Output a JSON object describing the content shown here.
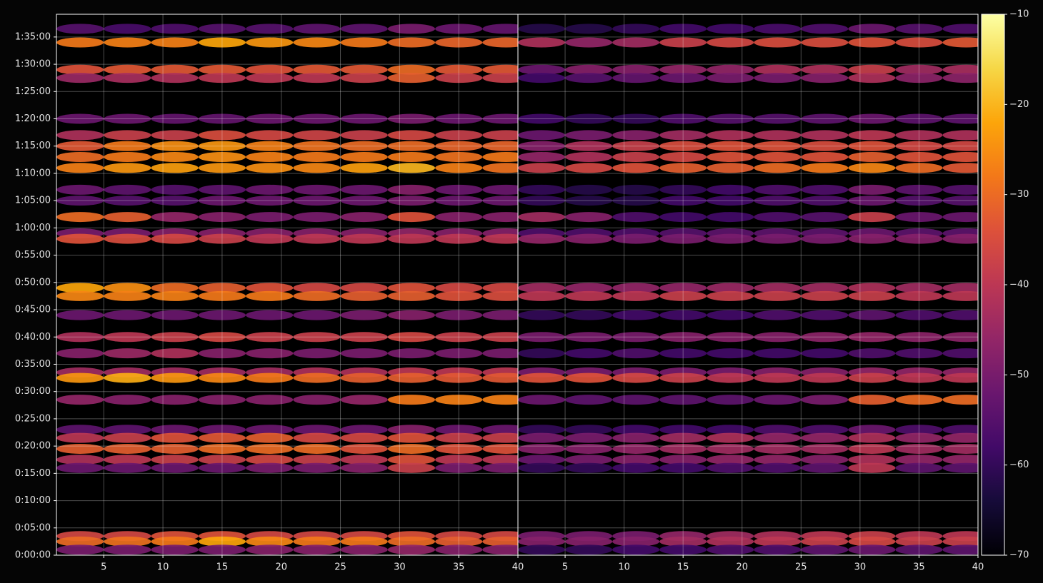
{
  "chart_data": [
    {
      "type": "heatmap",
      "colormap": "inferno",
      "grid": true,
      "xlim": [
        1,
        40
      ],
      "xticks": [
        5,
        10,
        15,
        20,
        25,
        30,
        35,
        40
      ],
      "ylim": [
        0,
        5950
      ],
      "yticks": [
        {
          "value": 0,
          "label": "0:00:00"
        },
        {
          "value": 300,
          "label": "0:05:00"
        },
        {
          "value": 600,
          "label": "0:10:00"
        },
        {
          "value": 900,
          "label": "0:15:00"
        },
        {
          "value": 1200,
          "label": "0:20:00"
        },
        {
          "value": 1500,
          "label": "0:25:00"
        },
        {
          "value": 1800,
          "label": "0:30:00"
        },
        {
          "value": 2100,
          "label": "0:35:00"
        },
        {
          "value": 2400,
          "label": "0:40:00"
        },
        {
          "value": 2700,
          "label": "0:45:00"
        },
        {
          "value": 3000,
          "label": "0:50:00"
        },
        {
          "value": 3300,
          "label": "0:55:00"
        },
        {
          "value": 3600,
          "label": "1:00:00"
        },
        {
          "value": 3900,
          "label": "1:05:00"
        },
        {
          "value": 4200,
          "label": "1:10:00"
        },
        {
          "value": 4500,
          "label": "1:15:00"
        },
        {
          "value": 4800,
          "label": "1:20:00"
        },
        {
          "value": 5100,
          "label": "1:25:00"
        },
        {
          "value": 5400,
          "label": "1:30:00"
        },
        {
          "value": 5700,
          "label": "1:35:00"
        }
      ],
      "x": [
        3,
        7,
        11,
        15,
        19,
        23,
        27,
        31,
        35,
        39
      ],
      "y": [
        5790,
        5640,
        5340,
        5250,
        4800,
        4620,
        4500,
        4380,
        4260,
        4020,
        3900,
        3720,
        3540,
        3480,
        2940,
        2850,
        2640,
        2400,
        2220,
        2010,
        1950,
        1710,
        1380,
        1290,
        1170,
        1050,
        960,
        210,
        150,
        60
      ],
      "values": [
        [
          -55,
          -57,
          -56,
          -55,
          -55,
          -54,
          -54,
          -50,
          -52,
          -53
        ],
        [
          -28,
          -27,
          -27,
          -22,
          -24,
          -26,
          -28,
          -30,
          -31,
          -31
        ],
        [
          -34,
          -33,
          -33,
          -33,
          -34,
          -33,
          -33,
          -30,
          -33,
          -33
        ],
        [
          -45,
          -43,
          -42,
          -40,
          -40,
          -40,
          -38,
          -32,
          -38,
          -38
        ],
        [
          -52,
          -52,
          -53,
          -53,
          -52,
          -52,
          -52,
          -50,
          -52,
          -52
        ],
        [
          -42,
          -38,
          -38,
          -35,
          -36,
          -37,
          -38,
          -36,
          -38,
          -38
        ],
        [
          -33,
          -28,
          -25,
          -24,
          -27,
          -29,
          -30,
          -30,
          -31,
          -31
        ],
        [
          -30,
          -28,
          -26,
          -25,
          -27,
          -28,
          -28,
          -28,
          -29,
          -28
        ],
        [
          -27,
          -24,
          -23,
          -24,
          -25,
          -26,
          -23,
          -20,
          -27,
          -29
        ],
        [
          -52,
          -54,
          -55,
          -54,
          -52,
          -52,
          -52,
          -48,
          -52,
          -52
        ],
        [
          -54,
          -55,
          -55,
          -52,
          -52,
          -52,
          -52,
          -50,
          -52,
          -52
        ],
        [
          -30,
          -32,
          -46,
          -48,
          -50,
          -50,
          -48,
          -34,
          -48,
          -48
        ],
        [
          -50,
          -50,
          -48,
          -48,
          -48,
          -48,
          -48,
          -46,
          -48,
          -48
        ],
        [
          -34,
          -35,
          -36,
          -38,
          -40,
          -40,
          -40,
          -40,
          -40,
          -40
        ],
        [
          -22,
          -25,
          -30,
          -32,
          -34,
          -36,
          -36,
          -34,
          -36,
          -36
        ],
        [
          -26,
          -27,
          -27,
          -28,
          -28,
          -30,
          -32,
          -32,
          -34,
          -35
        ],
        [
          -52,
          -52,
          -52,
          -52,
          -52,
          -52,
          -50,
          -48,
          -50,
          -50
        ],
        [
          -42,
          -40,
          -38,
          -36,
          -38,
          -38,
          -38,
          -36,
          -38,
          -38
        ],
        [
          -48,
          -45,
          -42,
          -48,
          -48,
          -50,
          -50,
          -50,
          -50,
          -50
        ],
        [
          -44,
          -44,
          -44,
          -44,
          -44,
          -42,
          -42,
          -40,
          -40,
          -40
        ],
        [
          -24,
          -21,
          -24,
          -26,
          -28,
          -30,
          -32,
          -32,
          -33,
          -33
        ],
        [
          -46,
          -48,
          -48,
          -48,
          -48,
          -48,
          -46,
          -28,
          -27,
          -27
        ],
        [
          -54,
          -54,
          -52,
          -52,
          -52,
          -52,
          -52,
          -48,
          -52,
          -52
        ],
        [
          -40,
          -38,
          -34,
          -33,
          -32,
          -36,
          -36,
          -34,
          -38,
          -38
        ],
        [
          -32,
          -32,
          -32,
          -30,
          -30,
          -30,
          -34,
          -30,
          -34,
          -34
        ],
        [
          -42,
          -40,
          -38,
          -38,
          -36,
          -38,
          -40,
          -34,
          -40,
          -40
        ],
        [
          -52,
          -52,
          -52,
          -52,
          -50,
          -50,
          -48,
          -38,
          -50,
          -50
        ],
        [
          -36,
          -36,
          -34,
          -34,
          -36,
          -36,
          -36,
          -34,
          -36,
          -36
        ],
        [
          -30,
          -29,
          -28,
          -22,
          -26,
          -28,
          -28,
          -30,
          -32,
          -32
        ],
        [
          -50,
          -50,
          -50,
          -50,
          -48,
          -48,
          -48,
          -46,
          -48,
          -48
        ]
      ]
    },
    {
      "type": "heatmap",
      "colormap": "inferno",
      "grid": true,
      "xlim": [
        1,
        40
      ],
      "xticks": [
        5,
        10,
        15,
        20,
        25,
        30,
        35,
        40
      ],
      "ylim": [
        0,
        5950
      ],
      "x": [
        3,
        7,
        11,
        15,
        19,
        23,
        27,
        31,
        35,
        39
      ],
      "y": [
        5790,
        5640,
        5340,
        5250,
        4800,
        4620,
        4500,
        4380,
        4260,
        4020,
        3900,
        3720,
        3540,
        3480,
        2940,
        2850,
        2640,
        2400,
        2220,
        2010,
        1950,
        1710,
        1380,
        1290,
        1170,
        1050,
        960,
        210,
        150,
        60
      ],
      "values": [
        [
          -62,
          -62,
          -60,
          -58,
          -58,
          -57,
          -56,
          -52,
          -55,
          -56
        ],
        [
          -42,
          -46,
          -44,
          -38,
          -36,
          -35,
          -35,
          -34,
          -35,
          -33
        ],
        [
          -52,
          -48,
          -48,
          -46,
          -46,
          -42,
          -42,
          -38,
          -44,
          -43
        ],
        [
          -58,
          -55,
          -53,
          -52,
          -50,
          -50,
          -48,
          -42,
          -47,
          -47
        ],
        [
          -58,
          -60,
          -60,
          -56,
          -55,
          -55,
          -54,
          -52,
          -54,
          -54
        ],
        [
          -52,
          -50,
          -48,
          -44,
          -42,
          -42,
          -42,
          -40,
          -42,
          -42
        ],
        [
          -48,
          -42,
          -38,
          -35,
          -34,
          -34,
          -35,
          -34,
          -36,
          -36
        ],
        [
          -46,
          -42,
          -38,
          -36,
          -34,
          -34,
          -34,
          -32,
          -34,
          -34
        ],
        [
          -38,
          -36,
          -34,
          -32,
          -32,
          -30,
          -28,
          -26,
          -30,
          -33
        ],
        [
          -60,
          -62,
          -62,
          -60,
          -58,
          -56,
          -56,
          -50,
          -54,
          -55
        ],
        [
          -60,
          -62,
          -62,
          -58,
          -58,
          -56,
          -56,
          -52,
          -55,
          -55
        ],
        [
          -44,
          -48,
          -56,
          -58,
          -58,
          -56,
          -55,
          -38,
          -52,
          -52
        ],
        [
          -56,
          -56,
          -56,
          -55,
          -54,
          -54,
          -54,
          -52,
          -54,
          -54
        ],
        [
          -46,
          -48,
          -50,
          -50,
          -50,
          -50,
          -50,
          -48,
          -48,
          -48
        ],
        [
          -44,
          -46,
          -46,
          -46,
          -45,
          -44,
          -44,
          -42,
          -44,
          -44
        ],
        [
          -40,
          -40,
          -40,
          -38,
          -38,
          -38,
          -38,
          -38,
          -40,
          -40
        ],
        [
          -60,
          -60,
          -58,
          -58,
          -58,
          -56,
          -56,
          -54,
          -56,
          -56
        ],
        [
          -50,
          -50,
          -50,
          -48,
          -48,
          -48,
          -47,
          -46,
          -47,
          -47
        ],
        [
          -60,
          -58,
          -56,
          -58,
          -58,
          -58,
          -58,
          -56,
          -56,
          -56
        ],
        [
          -50,
          -50,
          -50,
          -50,
          -50,
          -48,
          -48,
          -46,
          -46,
          -46
        ],
        [
          -34,
          -34,
          -36,
          -38,
          -40,
          -40,
          -40,
          -38,
          -40,
          -40
        ],
        [
          -52,
          -54,
          -54,
          -54,
          -54,
          -52,
          -50,
          -32,
          -30,
          -30
        ],
        [
          -60,
          -60,
          -58,
          -58,
          -58,
          -56,
          -56,
          -52,
          -56,
          -56
        ],
        [
          -50,
          -50,
          -48,
          -44,
          -42,
          -46,
          -46,
          -42,
          -46,
          -46
        ],
        [
          -48,
          -48,
          -46,
          -44,
          -44,
          -44,
          -44,
          -40,
          -44,
          -44
        ],
        [
          -52,
          -50,
          -48,
          -48,
          -46,
          -46,
          -48,
          -42,
          -46,
          -46
        ],
        [
          -60,
          -60,
          -58,
          -58,
          -56,
          -56,
          -54,
          -40,
          -54,
          -54
        ],
        [
          -50,
          -50,
          -50,
          -46,
          -44,
          -42,
          -40,
          -38,
          -40,
          -40
        ],
        [
          -48,
          -48,
          -48,
          -44,
          -42,
          -40,
          -38,
          -36,
          -38,
          -38
        ],
        [
          -60,
          -60,
          -58,
          -58,
          -56,
          -56,
          -54,
          -52,
          -54,
          -54
        ]
      ]
    },
    {
      "type": "colorbar",
      "colormap": "inferno",
      "clim": [
        -70,
        -10
      ],
      "cticks": [
        {
          "value": -70,
          "label": "−70"
        },
        {
          "value": -60,
          "label": "−60"
        },
        {
          "value": -50,
          "label": "−50"
        },
        {
          "value": -40,
          "label": "−40"
        },
        {
          "value": -30,
          "label": "−30"
        },
        {
          "value": -20,
          "label": "−20"
        },
        {
          "value": -10,
          "label": "−10"
        }
      ]
    }
  ]
}
